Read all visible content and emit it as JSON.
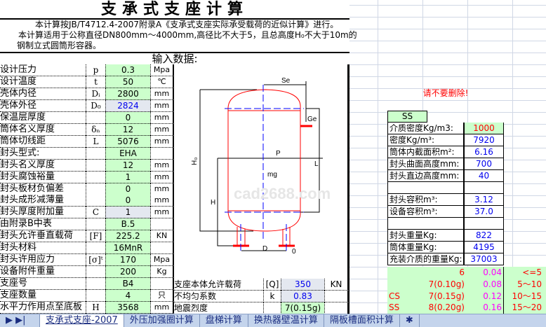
{
  "title": "支承式支座计算",
  "intro": [
    "本计算按JB/T4712.4-2007附录A《支承式支座实际承受载荷的近似计算》进行。",
    "本计算适用于公称直径DN800mm～4000mm,高径比不大于5，且总高度H₀不大于10m的",
    "钢制立式圆筒形容器。"
  ],
  "input_header": "输入数据:",
  "inputs": [
    {
      "label": "设计压力",
      "sym": "p",
      "value": "0.3",
      "unit": "Mpa"
    },
    {
      "label": "设计温度",
      "sym": "t",
      "value": "50",
      "unit": "℃"
    },
    {
      "label": "壳体内径",
      "sym": "Dᵢ",
      "value": "2800",
      "unit": "mm"
    },
    {
      "label": "壳体外径",
      "sym": "D₀",
      "value": "2824",
      "unit": "mm"
    },
    {
      "label": "保温层厚度",
      "sym": "",
      "value": "0",
      "unit": "mm"
    },
    {
      "label": "筒体名义厚度",
      "sym": "δₙ",
      "value": "12",
      "unit": "mm"
    },
    {
      "label": "筒体切线距",
      "sym": "L",
      "value": "5076",
      "unit": "mm"
    },
    {
      "label": "封头型式:",
      "sym": "",
      "value": "EHA",
      "unit": ""
    },
    {
      "label": "封头名义厚度",
      "sym": "",
      "value": "12",
      "unit": "mm"
    },
    {
      "label": "封头腐蚀裕量",
      "sym": "",
      "value": "1",
      "unit": "mm"
    },
    {
      "label": "封头板材负偏差",
      "sym": "",
      "value": "0",
      "unit": "mm"
    },
    {
      "label": "封头成形减薄量",
      "sym": "",
      "value": "0",
      "unit": "mm"
    },
    {
      "label": "封头厚度附加量",
      "sym": "C",
      "value": "1",
      "unit": "mm"
    },
    {
      "label": "由附录B中表",
      "sym": "",
      "value": "B.5",
      "unit": ""
    },
    {
      "label": "封头允许垂直载荷",
      "sym": "[F]",
      "value": "225.2",
      "unit": "KN"
    },
    {
      "label": "封头材料",
      "sym": "",
      "value": "16MnR",
      "unit": ""
    },
    {
      "label": "封头许用应力",
      "sym": "[σ]ᵗ",
      "value": "170",
      "unit": "Mpa"
    },
    {
      "label": "设备附件重量",
      "sym": "",
      "value": "200",
      "unit": "Kg"
    },
    {
      "label": "支座号",
      "sym": "",
      "value": "B4",
      "unit": ""
    },
    {
      "label": "支座数量",
      "sym": "",
      "value": "4",
      "unit": "只"
    },
    {
      "label": "水平力作用点至底板",
      "sym": "H",
      "value": "3568",
      "unit": "mm"
    }
  ],
  "drawing_labels": {
    "se": "Se",
    "ge": "Ge",
    "h0": "H₀",
    "p": "P",
    "mg": "mg",
    "l": "L",
    "h": "H",
    "d": "D",
    "o": "0",
    "watermark": "cad2688.com"
  },
  "support": [
    {
      "label": "支座本体允许载荷",
      "sym": "[Q]",
      "value": "350",
      "unit": "KN"
    },
    {
      "label": "不均匀系数",
      "sym": "k",
      "value": "0.83",
      "unit": ""
    },
    {
      "label": "地震烈度",
      "sym": "",
      "value": "7(0.15g)",
      "unit": ""
    }
  ],
  "warning": "请不要删除!",
  "material": "SS",
  "right": [
    {
      "label": "介质密度Kg/m3:",
      "value": "1000"
    },
    {
      "label": "密度Kg/m³:",
      "value": "7920"
    },
    {
      "label": "筒体内截面积m²:",
      "value": "6.16"
    },
    {
      "label": "封头曲面高度mm:",
      "value": "700"
    },
    {
      "label": "封头直边高度mm:",
      "value": "40"
    },
    {
      "label": "",
      "value": ""
    },
    {
      "label": "封头容积m³:",
      "value": "3.12"
    },
    {
      "label": "设备容积m³:",
      "value": "37.0"
    },
    {
      "label": "",
      "value": ""
    },
    {
      "label": "封头重量Kg:",
      "value": "822"
    },
    {
      "label": "筒体重量Kg:",
      "value": "4195"
    },
    {
      "label": "充装介质的重量Kg:",
      "value": "37003"
    }
  ],
  "seismic": [
    {
      "mat": "",
      "deg": "6",
      "coef": "0.04",
      "range": "<=5"
    },
    {
      "mat": "",
      "deg": "7(0.10g)",
      "coef": "0.08",
      "range": "5～10"
    },
    {
      "mat": "CS",
      "deg": "7(0.15g)",
      "coef": "0.12",
      "range": "10～15"
    },
    {
      "mat": "SS",
      "deg": "8(0.20g)",
      "coef": "0.16",
      "range": "15～20"
    }
  ],
  "tabs": [
    "支承式支座-2007",
    "外压加强圈计算",
    "盘梯计算",
    "换热器壁温计算",
    "隔板槽面积计算"
  ],
  "colors": {
    "input_bg": "#ccffcc",
    "calc_text": "#0000ee",
    "warning": "#ff0000",
    "vessel": "#ff0000",
    "centerline": "#0000ff"
  }
}
